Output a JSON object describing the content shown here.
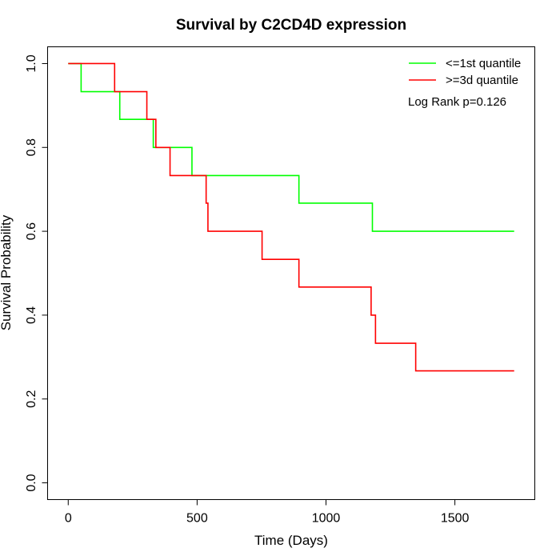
{
  "chart_data": {
    "type": "line",
    "title": "Survival by C2CD4D expression",
    "xlabel": "Time (Days)",
    "ylabel": "Survival Probability",
    "xlim": [
      -80,
      1810
    ],
    "ylim": [
      -0.04,
      1.04
    ],
    "xticks": [
      0,
      500,
      1000,
      1500
    ],
    "yticks": [
      0.0,
      0.2,
      0.4,
      0.6,
      0.8,
      1.0
    ],
    "xtick_labels": [
      "0",
      "500",
      "1000",
      "1500"
    ],
    "ytick_labels": [
      "0.0",
      "0.2",
      "0.4",
      "0.6",
      "0.8",
      "1.0"
    ],
    "grid": false,
    "legend_position": "top-right",
    "annotation": "Log Rank p=0.126",
    "series": [
      {
        "name": "<=1st quantile",
        "color": "#00ff00",
        "x": [
          0,
          50,
          200,
          330,
          480,
          895,
          1180,
          1730
        ],
        "y": [
          1.0,
          0.933,
          0.867,
          0.8,
          0.733,
          0.667,
          0.6,
          0.6
        ]
      },
      {
        "name": ">=3d quantile",
        "color": "#ff0000",
        "x": [
          0,
          180,
          305,
          340,
          395,
          535,
          542,
          752,
          895,
          1175,
          1192,
          1348,
          1730
        ],
        "y": [
          1.0,
          0.933,
          0.867,
          0.8,
          0.733,
          0.667,
          0.6,
          0.533,
          0.467,
          0.4,
          0.333,
          0.267,
          0.267
        ]
      }
    ]
  }
}
